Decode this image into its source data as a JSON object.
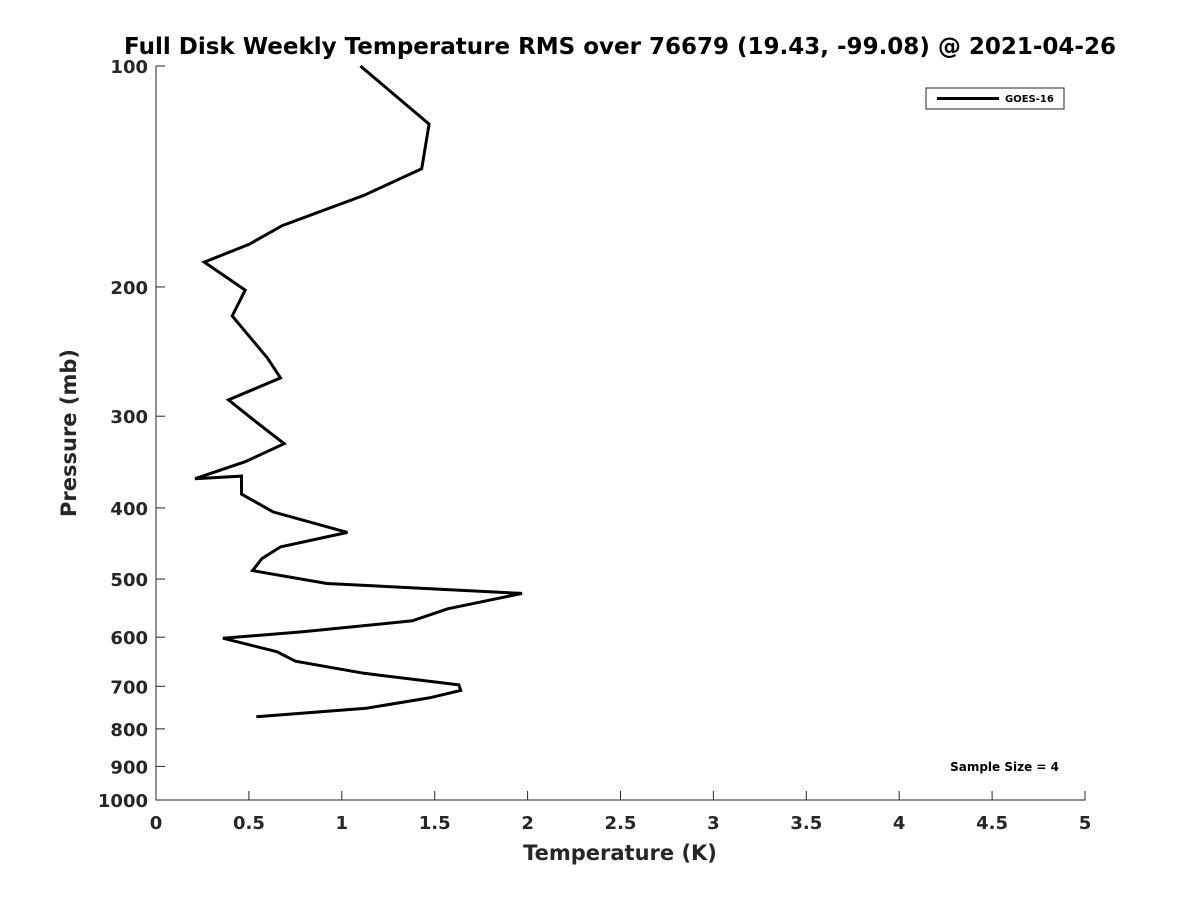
{
  "chart_data": {
    "type": "line",
    "title": "Full Disk Weekly Temperature RMS over 76679 (19.43, -99.08) @ 2021-04-26",
    "xlabel": "Temperature (K)",
    "ylabel": "Pressure (mb)",
    "xlim": [
      0,
      5
    ],
    "ylim": [
      1000,
      100
    ],
    "yscale": "log",
    "x_ticks": [
      0,
      0.5,
      1,
      1.5,
      2,
      2.5,
      3,
      3.5,
      4,
      4.5,
      5
    ],
    "x_tick_labels": [
      "0",
      "0.5",
      "1",
      "1.5",
      "2",
      "2.5",
      "3",
      "3.5",
      "4",
      "4.5",
      "5"
    ],
    "y_ticks": [
      100,
      200,
      300,
      400,
      500,
      600,
      700,
      800,
      900,
      1000
    ],
    "y_tick_labels": [
      "100",
      "200",
      "300",
      "400",
      "500",
      "600",
      "700",
      "800",
      "900",
      "1000"
    ],
    "grid": false,
    "legend_position": "top-right",
    "series": [
      {
        "name": "GOES-16",
        "color": "#000000",
        "x": [
          1.1,
          1.47,
          1.43,
          1.12,
          0.68,
          0.5,
          0.26,
          0.48,
          0.41,
          0.6,
          0.67,
          0.39,
          0.55,
          0.69,
          0.48,
          0.21,
          0.46,
          0.46,
          0.63,
          1.03,
          0.67,
          0.57,
          0.52,
          0.92,
          1.97,
          1.57,
          1.38,
          0.79,
          0.36,
          0.65,
          0.75,
          1.12,
          1.63,
          1.64,
          1.47,
          1.13,
          0.54
        ],
        "y": [
          100,
          120,
          138,
          150,
          165,
          175,
          185,
          202,
          219,
          250,
          266,
          285,
          307,
          327,
          346,
          365,
          362,
          383,
          405,
          432,
          452,
          469,
          487,
          507,
          523,
          549,
          570,
          590,
          602,
          628,
          647,
          672,
          697,
          709,
          726,
          750,
          770
        ]
      }
    ],
    "annotation": "Sample Size = 4"
  }
}
